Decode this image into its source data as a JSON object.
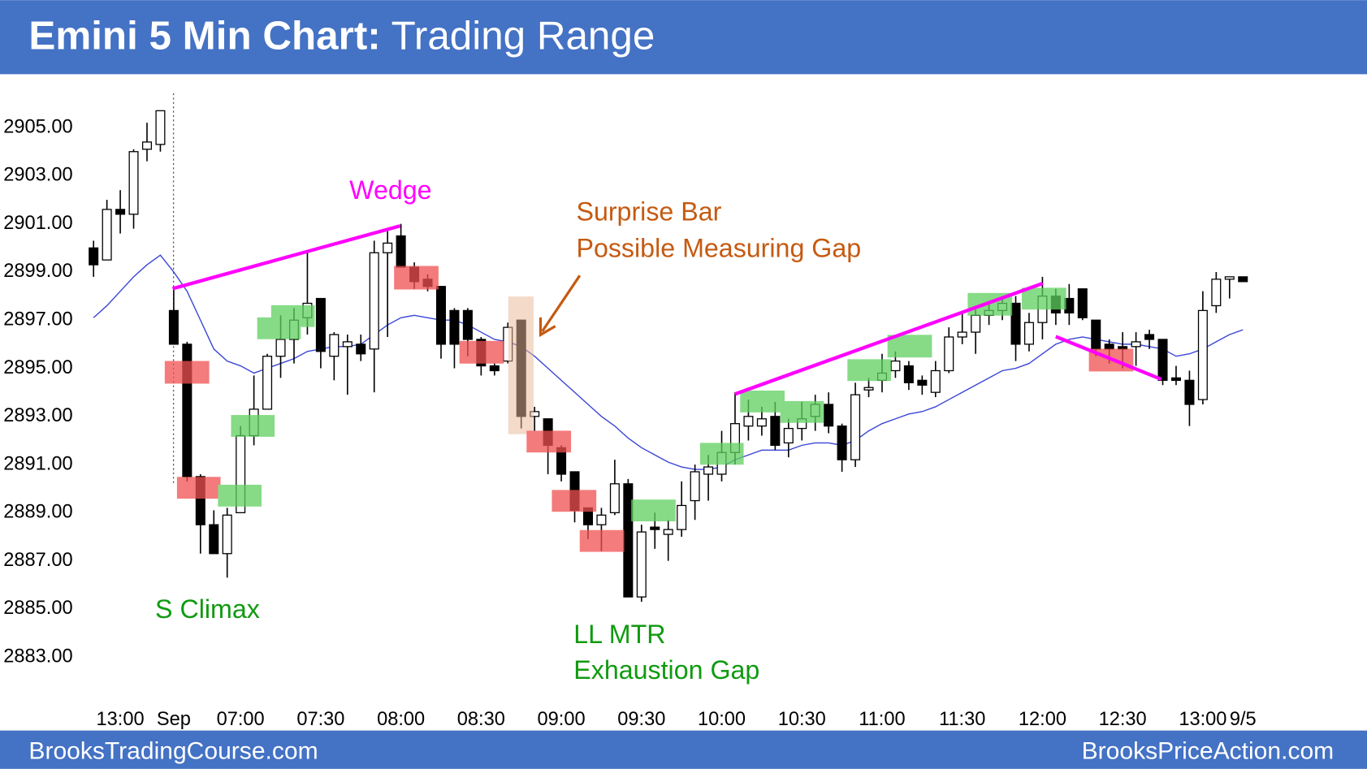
{
  "header": {
    "title": "Emini 5 Min Chart:",
    "subtitle": "Trading Range"
  },
  "footer": {
    "left": "BrooksTradingCourse.com",
    "right": "BrooksPriceAction.com"
  },
  "annotations": {
    "wedge": "Wedge",
    "surprise": "Surprise Bar",
    "gap": "Possible Measuring Gap",
    "climax": "S Climax",
    "mtr": "LL MTR",
    "exhaustion": "Exhaustion Gap"
  },
  "chart_data": {
    "type": "candlestick",
    "categories": [
      null,
      null,
      "13:00",
      null,
      null,
      null,
      "Sep",
      null,
      null,
      null,
      null,
      "07:00",
      null,
      null,
      null,
      null,
      null,
      "07:30",
      null,
      null,
      null,
      null,
      null,
      "08:00",
      null,
      null,
      null,
      null,
      null,
      "08:30",
      null,
      null,
      null,
      null,
      null,
      "09:00",
      null,
      null,
      null,
      null,
      null,
      "09:30",
      null,
      null,
      null,
      null,
      null,
      "10:00",
      null,
      null,
      null,
      null,
      null,
      "10:30",
      null,
      null,
      null,
      null,
      null,
      "11:00",
      null,
      null,
      null,
      null,
      null,
      "11:30",
      null,
      null,
      null,
      null,
      null,
      "12:00",
      null,
      null,
      null,
      null,
      null,
      "12:30",
      null,
      null,
      null,
      null,
      null,
      "13:00",
      null,
      null,
      "9/5"
    ],
    "open": [
      2900.0,
      2899.5,
      2901.6,
      2901.4,
      2904.1,
      2904.3,
      2897.4,
      2896.0,
      2890.5,
      2888.5,
      2887.3,
      2889.0,
      2892.2,
      2893.3,
      2895.5,
      2896.2,
      2897.1,
      2897.9,
      2895.5,
      2895.9,
      2896.0,
      2895.8,
      2899.8,
      2900.5,
      2899.2,
      2898.7,
      2898.4,
      2897.4,
      2897.4,
      2896.2,
      2895.1,
      2895.3,
      2897.0,
      2893.0,
      2892.9,
      2891.7,
      2890.7,
      2889.2,
      2888.5,
      2889.0,
      2890.2,
      2885.5,
      2888.4,
      2888.1,
      2888.3,
      2889.5,
      2890.6,
      2890.6,
      2891.5,
      2892.6,
      2892.6,
      2893.0,
      2891.9,
      2892.5,
      2893.0,
      2893.5,
      2892.6,
      2891.2,
      2894.1,
      2894.5,
      2894.9,
      2895.1,
      2894.5,
      2894.0,
      2894.9,
      2896.3,
      2896.5,
      2897.2,
      2897.4,
      2897.7,
      2896.0,
      2896.9,
      2898.0,
      2897.9,
      2898.3,
      2897.0,
      2896.0,
      2895.9,
      2895.9,
      2896.4,
      2896.2,
      2894.6,
      2894.5,
      2893.7,
      2897.6,
      2898.7,
      2898.8
    ],
    "high": [
      2900.3,
      2902.0,
      2902.4,
      2904.1,
      2905.2,
      2905.7,
      2898.3,
      2896.1,
      2890.6,
      2889.1,
      2889.2,
      2892.6,
      2894.7,
      2895.6,
      2897.2,
      2897.5,
      2899.9,
      2897.9,
      2896.5,
      2896.4,
      2896.4,
      2900.3,
      2900.7,
      2901.0,
      2899.4,
      2898.9,
      2898.4,
      2897.5,
      2897.5,
      2896.3,
      2895.2,
      2896.9,
      2897.0,
      2893.4,
      2892.9,
      2891.8,
      2890.7,
      2889.2,
      2889.2,
      2891.2,
      2890.4,
      2888.5,
      2889.0,
      2888.7,
      2890.3,
      2891.0,
      2891.4,
      2892.4,
      2894.0,
      2893.7,
      2893.4,
      2893.6,
      2892.9,
      2893.6,
      2893.9,
      2894.0,
      2892.7,
      2894.4,
      2894.6,
      2895.6,
      2895.7,
      2895.3,
      2894.7,
      2895.3,
      2896.7,
      2897.3,
      2897.6,
      2897.8,
      2898.0,
      2898.0,
      2897.3,
      2898.8,
      2898.3,
      2898.5,
      2898.3,
      2897.0,
      2896.2,
      2896.5,
      2896.5,
      2896.6,
      2896.2,
      2895.1,
      2894.9,
      2898.2,
      2899.0,
      2898.8,
      2898.8
    ],
    "low": [
      2898.8,
      2899.5,
      2900.6,
      2900.8,
      2903.6,
      2904.0,
      2896.0,
      2890.3,
      2887.3,
      2887.3,
      2886.3,
      2889.0,
      2891.8,
      2893.3,
      2894.6,
      2895.2,
      2896.4,
      2895.0,
      2894.5,
      2893.9,
      2895.3,
      2894.0,
      2896.3,
      2899.2,
      2898.3,
      2898.2,
      2895.4,
      2895.0,
      2895.5,
      2894.7,
      2894.7,
      2895.2,
      2892.5,
      2892.4,
      2890.6,
      2890.3,
      2888.6,
      2887.9,
      2887.4,
      2888.9,
      2885.5,
      2885.3,
      2887.5,
      2887.0,
      2888.0,
      2888.7,
      2889.5,
      2890.3,
      2891.0,
      2892.0,
      2892.2,
      2891.6,
      2891.3,
      2892.0,
      2892.4,
      2892.3,
      2890.7,
      2890.9,
      2893.8,
      2894.0,
      2894.6,
      2894.1,
      2893.9,
      2893.8,
      2894.8,
      2896.0,
      2895.6,
      2896.8,
      2897.0,
      2895.3,
      2895.7,
      2896.2,
      2896.8,
      2896.8,
      2897.0,
      2895.5,
      2895.2,
      2895.0,
      2895.1,
      2895.8,
      2894.3,
      2894.3,
      2892.6,
      2893.5,
      2897.3,
      2897.9,
      2898.6
    ],
    "close": [
      2899.3,
      2901.6,
      2901.4,
      2904.0,
      2904.4,
      2905.7,
      2896.0,
      2890.5,
      2888.5,
      2887.3,
      2888.9,
      2892.2,
      2893.3,
      2895.5,
      2896.2,
      2897.0,
      2897.7,
      2895.7,
      2896.4,
      2896.1,
      2895.6,
      2899.8,
      2900.2,
      2899.2,
      2898.6,
      2898.4,
      2896.0,
      2896.0,
      2896.2,
      2895.1,
      2894.9,
      2896.7,
      2893.0,
      2893.2,
      2891.8,
      2890.6,
      2889.1,
      2888.5,
      2888.9,
      2890.2,
      2885.5,
      2888.2,
      2888.3,
      2888.3,
      2889.3,
      2890.7,
      2890.9,
      2891.5,
      2892.7,
      2893.0,
      2892.9,
      2891.8,
      2892.5,
      2892.9,
      2893.5,
      2892.6,
      2891.2,
      2893.9,
      2894.2,
      2894.8,
      2895.3,
      2894.4,
      2894.3,
      2894.9,
      2896.3,
      2896.5,
      2897.2,
      2897.4,
      2897.7,
      2896.0,
      2896.9,
      2898.0,
      2897.3,
      2897.3,
      2897.1,
      2895.8,
      2895.8,
      2895.8,
      2896.1,
      2896.2,
      2894.5,
      2894.5,
      2893.5,
      2897.4,
      2898.7,
      2898.8,
      2898.6
    ],
    "up_color": "#ffffff",
    "down_color": "#000000",
    "overlay": {
      "type": "line",
      "color": "#3a46d6",
      "values": [
        2897.1,
        2897.6,
        2898.2,
        2898.8,
        2899.3,
        2899.7,
        2899.0,
        2898.2,
        2897.0,
        2895.8,
        2895.3,
        2895.1,
        2894.8,
        2895.0,
        2895.2,
        2895.4,
        2895.7,
        2895.8,
        2895.9,
        2895.9,
        2896.0,
        2896.4,
        2896.8,
        2897.1,
        2897.2,
        2897.1,
        2897.0,
        2897.0,
        2896.8,
        2896.5,
        2896.2,
        2896.1,
        2895.9,
        2895.5,
        2895.0,
        2894.5,
        2894.0,
        2893.5,
        2893.0,
        2892.6,
        2892.1,
        2891.7,
        2891.4,
        2891.1,
        2890.9,
        2890.8,
        2890.8,
        2890.9,
        2891.2,
        2891.4,
        2891.6,
        2891.6,
        2891.6,
        2891.8,
        2891.9,
        2891.9,
        2891.8,
        2892.0,
        2892.4,
        2892.7,
        2892.9,
        2893.1,
        2893.2,
        2893.4,
        2893.7,
        2894.0,
        2894.3,
        2894.6,
        2894.9,
        2895.0,
        2895.2,
        2895.6,
        2896.0,
        2896.2,
        2896.3,
        2896.2,
        2896.1,
        2896.0,
        2896.0,
        2895.9,
        2895.8,
        2895.5,
        2895.6,
        2895.8,
        2896.1,
        2896.4,
        2896.6
      ]
    },
    "ylim": [
      2881,
      2907
    ],
    "yticks": [
      {
        "value": 2905,
        "label": "2905.00"
      },
      {
        "value": 2903,
        "label": "2903.00"
      },
      {
        "value": 2901,
        "label": "2901.00"
      },
      {
        "value": 2899,
        "label": "2899.00"
      },
      {
        "value": 2897,
        "label": "2897.00"
      },
      {
        "value": 2895,
        "label": "2895.00"
      },
      {
        "value": 2893,
        "label": "2893.00"
      },
      {
        "value": 2891,
        "label": "2891.00"
      },
      {
        "value": 2889,
        "label": "2889.00"
      },
      {
        "value": 2887,
        "label": "2887.00"
      },
      {
        "value": 2885,
        "label": "2885.00"
      },
      {
        "value": 2883,
        "label": "2883.00"
      }
    ],
    "grid": false
  }
}
